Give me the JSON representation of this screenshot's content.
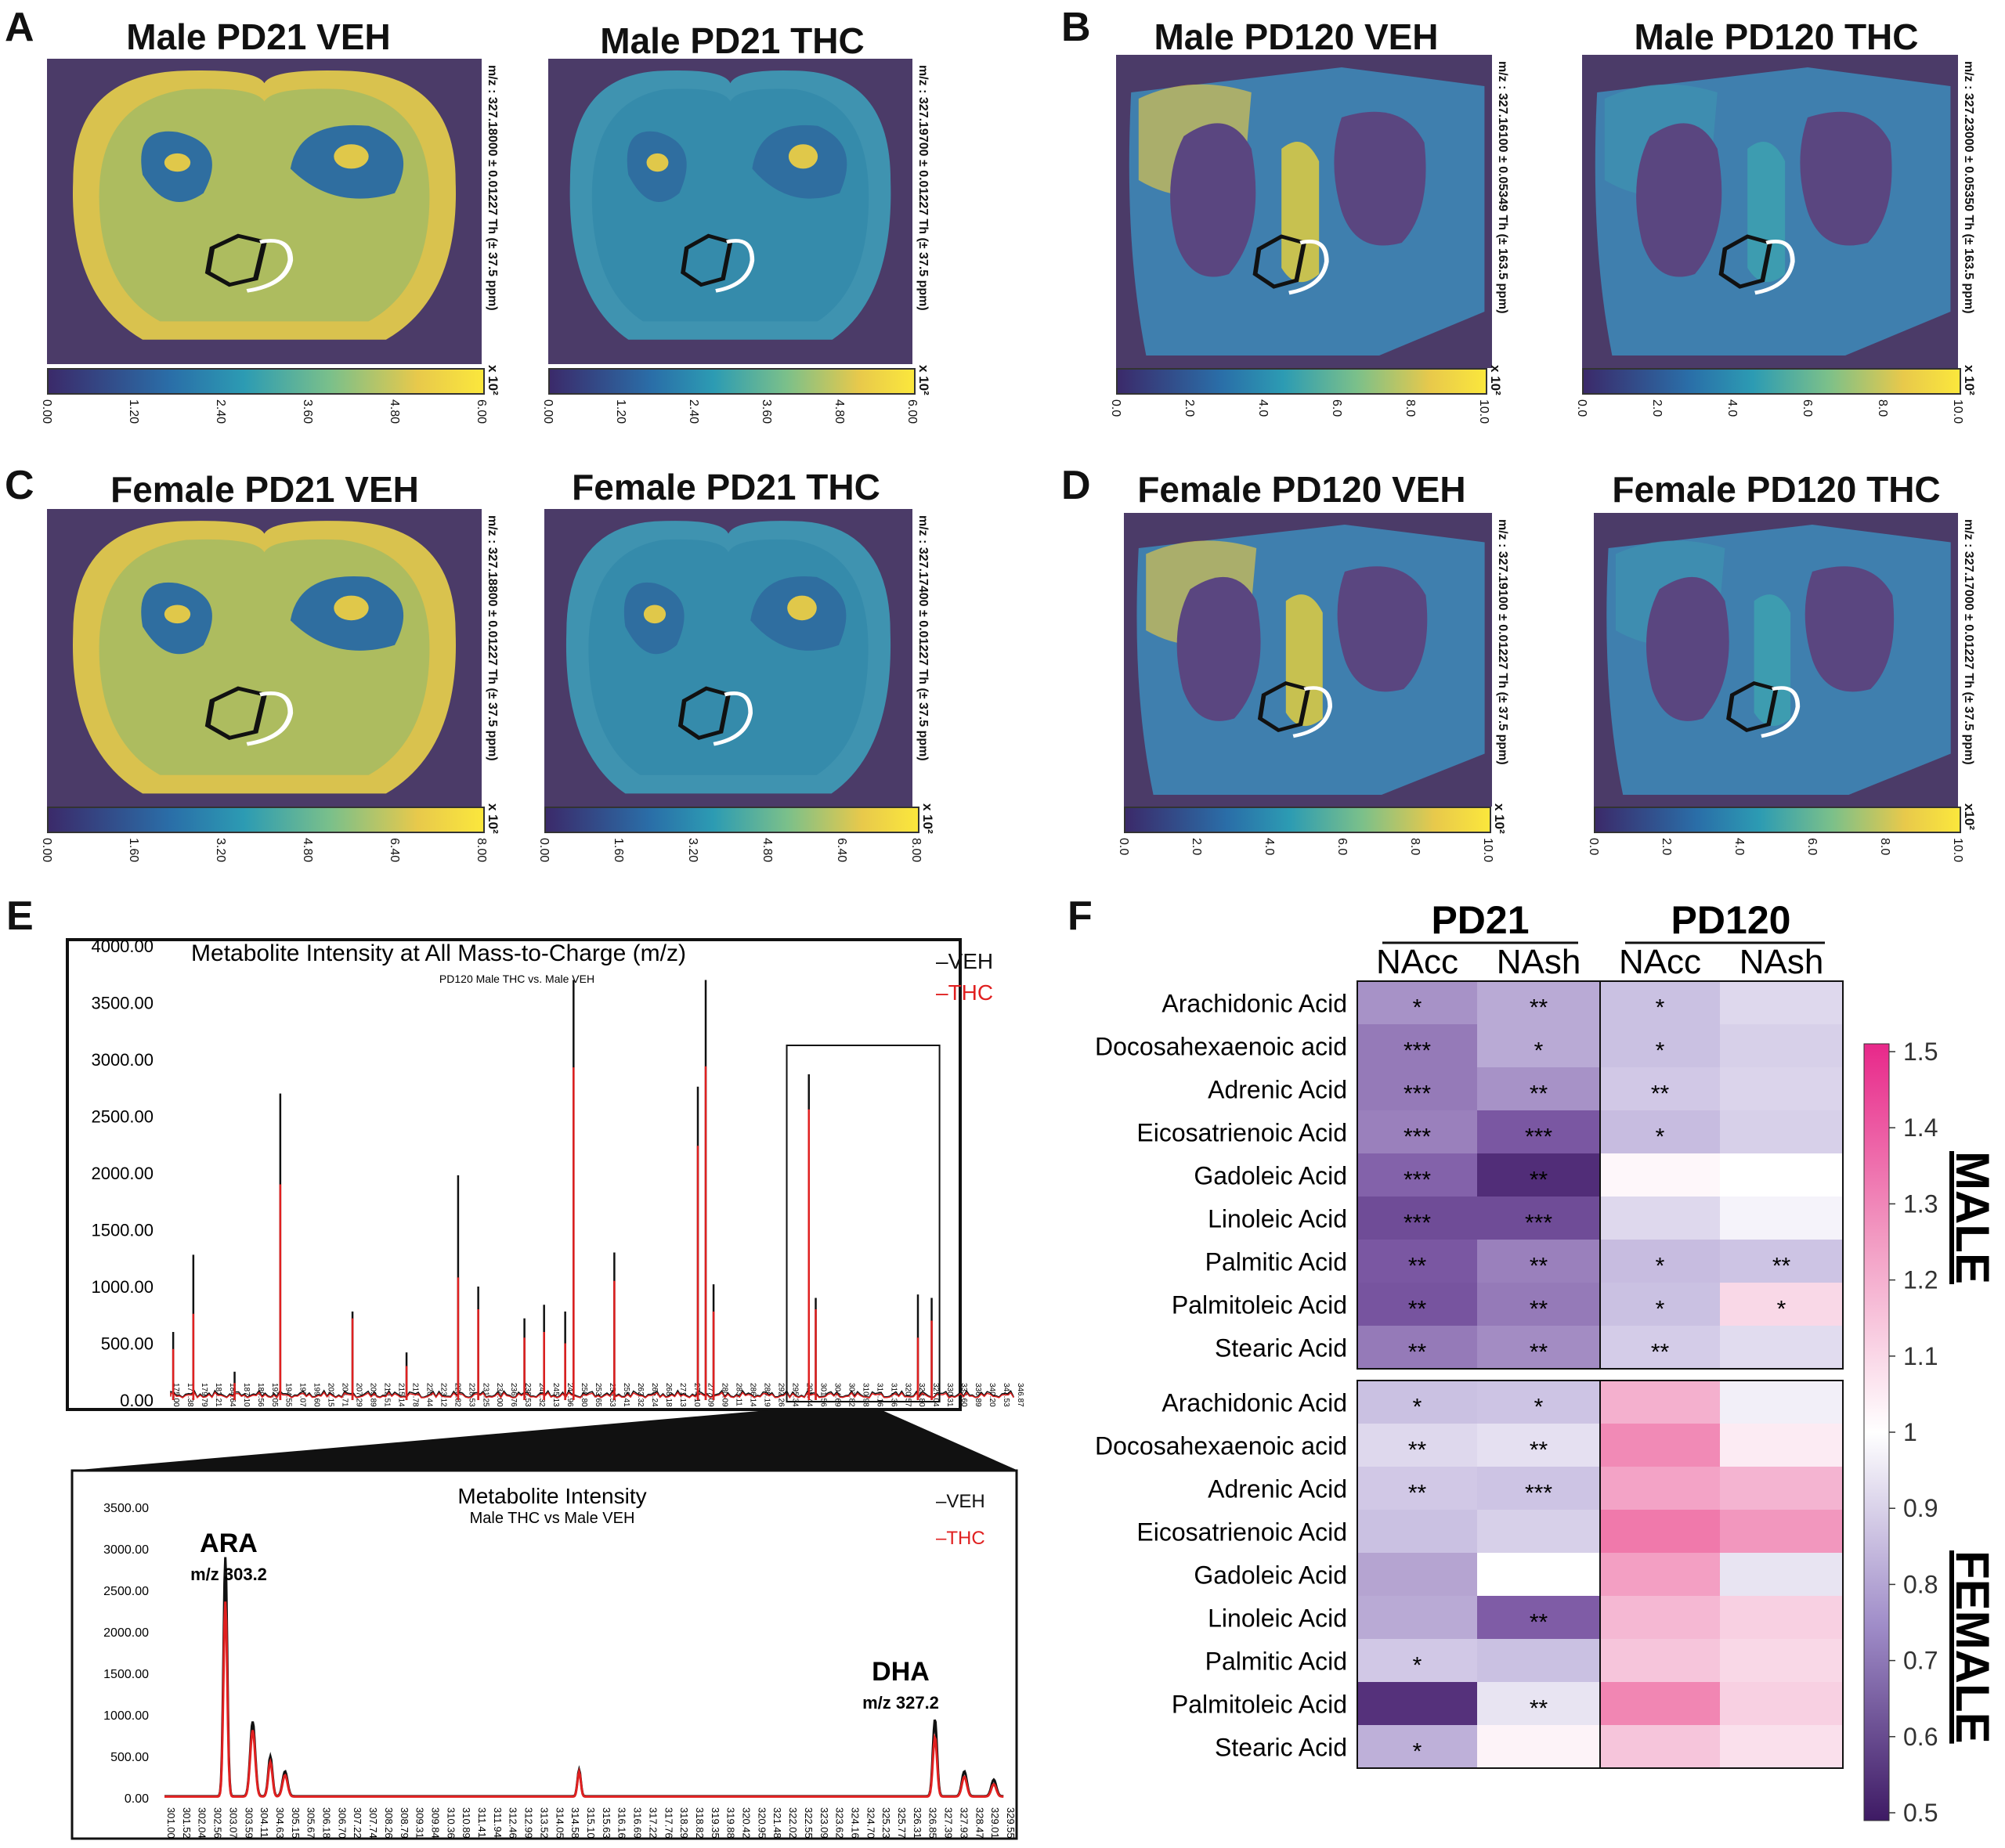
{
  "panels": {
    "A": {
      "label": "A",
      "titles": [
        "Male PD21 VEH",
        "Male PD21 THC"
      ],
      "mz": [
        "m/z : 327.18000 ± 0.01227 Th (± 37.5 ppm)",
        "m/z : 327.19700 ± 0.01227 Th (± 37.5 ppm)"
      ],
      "ticks": [
        "0.00",
        "1.20",
        "2.40",
        "3.60",
        "4.80",
        "6.00"
      ]
    },
    "B": {
      "label": "B",
      "titles": [
        "Male PD120 VEH",
        "Male PD120 THC"
      ],
      "mz": [
        "m/z : 327.16100 ± 0.05349 Th (± 163.5 ppm)",
        "m/z : 327.23000 ± 0.05350 Th (± 163.5 ppm)"
      ],
      "ticks": [
        "0.0",
        "2.0",
        "4.0",
        "6.0",
        "8.0",
        "10.0"
      ]
    },
    "C": {
      "label": "C",
      "titles": [
        "Female PD21 VEH",
        "Female PD21 THC"
      ],
      "mz": [
        "m/z : 327.18800 ± 0.01227 Th (± 37.5 ppm)",
        "m/z : 327.17400 ± 0.01227 Th (± 37.5 ppm)"
      ],
      "ticks": [
        "0.00",
        "1.60",
        "3.20",
        "4.80",
        "6.40",
        "8.00"
      ]
    },
    "D": {
      "label": "D",
      "titles": [
        "Female PD120 VEH",
        "Female PD120 THC"
      ],
      "mz": [
        "m/z : 327.19100 ± 0.01227 Th (± 37.5 ppm)",
        "m/z : 327.17000 ± 0.01227 Th (± 37.5 ppm)"
      ],
      "ticks": [
        "0.0",
        "2.0",
        "4.0",
        "6.0",
        "8.0",
        "10.0"
      ]
    },
    "exponent": "x 10²",
    "exponent_alt": "x10²"
  },
  "panelE": {
    "label": "E",
    "top": {
      "title": "Metabolite Intensity at All Mass-to-Charge (m/z)",
      "subtitle": "PD120 Male THC vs. Male VEH",
      "legend": [
        "–VEH",
        "–THC"
      ],
      "yticks": [
        "4000.00",
        "3500.00",
        "3000.00",
        "2500.00",
        "2000.00",
        "1500.00",
        "1000.00",
        "500.00",
        "0.00"
      ],
      "xticks": [
        "175.00",
        "177.38",
        "179.79",
        "182.21",
        "184.64",
        "187.10",
        "189.56",
        "192.05",
        "194.55",
        "197.07",
        "199.60",
        "202.15",
        "204.71",
        "207.29",
        "209.89",
        "212.51",
        "215.14",
        "217.78",
        "220.44",
        "223.12",
        "225.82",
        "228.53",
        "231.25",
        "234.00",
        "236.76",
        "239.53",
        "242.32",
        "245.13",
        "247.96",
        "250.80",
        "253.65",
        "256.53",
        "259.41",
        "262.32",
        "265.24",
        "268.18",
        "271.13",
        "274.10",
        "277.09",
        "280.09",
        "283.11",
        "286.14",
        "289.19",
        "292.26",
        "295.34",
        "298.44",
        "301.56",
        "304.69",
        "307.82",
        "310.98",
        "314.16",
        "317.36",
        "320.57",
        "323.80",
        "327.04",
        "330.31",
        "333.60",
        "336.89",
        "340.20",
        "343.53",
        "346.87"
      ]
    },
    "bottom": {
      "title": "Metabolite Intensity",
      "subtitle": "Male THC vs Male VEH",
      "legend": [
        "–VEH",
        "–THC"
      ],
      "yticks": [
        "3500.00",
        "3000.00",
        "2500.00",
        "2000.00",
        "1500.00",
        "1000.00",
        "500.00",
        "0.00"
      ],
      "xticks": [
        "301.00",
        "301.52",
        "302.04",
        "302.56",
        "303.07",
        "303.59",
        "304.11",
        "304.63",
        "305.15",
        "305.67",
        "306.18",
        "306.70",
        "307.22",
        "307.74",
        "308.26",
        "308.79",
        "309.31",
        "309.84",
        "310.36",
        "310.89",
        "311.41",
        "311.94",
        "312.46",
        "312.99",
        "313.52",
        "314.05",
        "314.58",
        "315.10",
        "315.63",
        "316.16",
        "316.69",
        "317.22",
        "317.76",
        "318.29",
        "318.82",
        "319.35",
        "319.88",
        "320.42",
        "320.95",
        "321.48",
        "322.02",
        "322.55",
        "323.09",
        "323.62",
        "324.16",
        "324.70",
        "325.23",
        "325.77",
        "326.31",
        "326.85",
        "327.39",
        "327.93",
        "328.47",
        "329.01",
        "329.55"
      ],
      "annotations": [
        {
          "name": "ARA",
          "mz": "m/z 303.2"
        },
        {
          "name": "DHA",
          "mz": "m/z 327.2"
        }
      ]
    }
  },
  "panelF": {
    "label": "F",
    "groups": [
      "PD21",
      "PD120"
    ],
    "columns": [
      "NAcc",
      "NAsh",
      "NAcc",
      "NAsh"
    ],
    "rows": [
      "Arachidonic Acid",
      "Docosahexaenoic acid",
      "Adrenic Acid",
      "Eicosatrienoic Acid",
      "Gadoleic Acid",
      "Linoleic Acid",
      "Palmitic Acid",
      "Palmitoleic Acid",
      "Stearic Acid"
    ],
    "sex_labels": [
      "MALE",
      "FEMALE"
    ],
    "colorbar_ticks": [
      "1.5",
      "1.4",
      "1.3",
      "1.2",
      "1.1",
      "1",
      "0.9",
      "0.8",
      "0.7",
      "0.6",
      "0.5"
    ],
    "male_values": [
      [
        0.76,
        0.8,
        0.84,
        0.9
      ],
      [
        0.72,
        0.8,
        0.84,
        0.88
      ],
      [
        0.72,
        0.76,
        0.86,
        0.89
      ],
      [
        0.73,
        0.66,
        0.83,
        0.88
      ],
      [
        0.68,
        0.55,
        1.02,
        1.0
      ],
      [
        0.63,
        0.63,
        0.9,
        0.97
      ],
      [
        0.66,
        0.73,
        0.83,
        0.85
      ],
      [
        0.65,
        0.72,
        0.84,
        1.1
      ],
      [
        0.72,
        0.75,
        0.87,
        0.91
      ]
    ],
    "male_stars": [
      [
        "*",
        "**",
        "*",
        ""
      ],
      [
        "***",
        "*",
        "*",
        ""
      ],
      [
        "***",
        "**",
        "**",
        ""
      ],
      [
        "***",
        "***",
        "*",
        ""
      ],
      [
        "***",
        "**",
        "",
        ""
      ],
      [
        "***",
        "***",
        "",
        ""
      ],
      [
        "**",
        "**",
        "*",
        "**"
      ],
      [
        "**",
        "**",
        "*",
        "*"
      ],
      [
        "**",
        "**",
        "**",
        ""
      ]
    ],
    "female_values": [
      [
        0.84,
        0.85,
        1.2,
        0.96
      ],
      [
        0.9,
        0.92,
        1.29,
        1.05
      ],
      [
        0.86,
        0.85,
        1.23,
        1.19
      ],
      [
        0.84,
        0.88,
        1.33,
        1.26
      ],
      [
        0.79,
        1.0,
        1.24,
        0.93
      ],
      [
        0.8,
        0.67,
        1.18,
        1.12
      ],
      [
        0.86,
        0.84,
        1.15,
        1.1
      ],
      [
        0.56,
        0.93,
        1.3,
        1.12
      ],
      [
        0.81,
        1.03,
        1.15,
        1.08
      ]
    ],
    "female_stars": [
      [
        "*",
        "*",
        "",
        ""
      ],
      [
        "**",
        "**",
        "",
        ""
      ],
      [
        "**",
        "***",
        "",
        ""
      ],
      [
        "",
        "",
        "",
        ""
      ],
      [
        "",
        "",
        "",
        ""
      ],
      [
        "",
        "**",
        "",
        ""
      ],
      [
        "*",
        "",
        "",
        ""
      ],
      [
        "",
        "**",
        "",
        ""
      ],
      [
        "*",
        "",
        "",
        ""
      ]
    ]
  }
}
